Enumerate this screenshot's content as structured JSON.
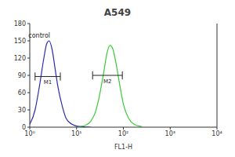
{
  "chart_data": {
    "type": "line",
    "title": "A549",
    "x_label": "FL1-H",
    "log": "x",
    "xlim": [
      1,
      10000
    ],
    "xticks": [
      {
        "value": 1,
        "label": "10⁰"
      },
      {
        "value": 10,
        "label": "10¹"
      },
      {
        "value": 100,
        "label": "10²"
      },
      {
        "value": 1000,
        "label": "10³"
      },
      {
        "value": 10000,
        "label": "10⁴"
      }
    ],
    "ylim": [
      0,
      180
    ],
    "yticks": [
      0,
      30,
      60,
      90,
      120,
      150,
      180
    ],
    "series": [
      {
        "color": "#2b2bb0",
        "x": [
          1,
          1.3,
          1.6,
          2,
          2.3,
          2.6,
          3,
          3.5,
          4,
          5,
          6,
          8,
          10,
          20
        ],
        "values": [
          5,
          30,
          70,
          120,
          145,
          150,
          135,
          100,
          70,
          35,
          15,
          5,
          2,
          0
        ]
      },
      {
        "color": "#3cc83c",
        "x": [
          10,
          15,
          20,
          25,
          30,
          38,
          45,
          52,
          60,
          70,
          85,
          100,
          130,
          170,
          250
        ],
        "values": [
          0,
          3,
          10,
          25,
          50,
          95,
          130,
          142,
          135,
          110,
          70,
          40,
          15,
          5,
          1
        ]
      }
    ],
    "annotations": [
      {
        "text": "control",
        "x": 1.6,
        "y": 160
      },
      {
        "text": "M1",
        "x": [
          1.3,
          4.5
        ],
        "y": 88
      },
      {
        "text": "M2",
        "x": [
          22,
          95
        ],
        "y": 90
      }
    ]
  }
}
